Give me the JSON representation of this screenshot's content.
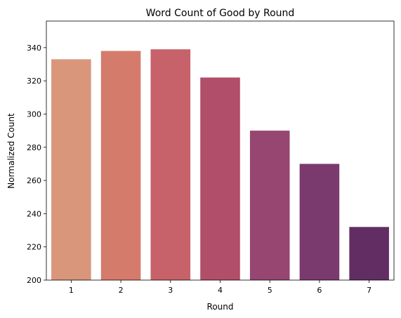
{
  "chart_data": {
    "type": "bar",
    "title": "Word Count of Good by Round",
    "xlabel": "Round",
    "ylabel": "Normalized Count",
    "categories": [
      "1",
      "2",
      "3",
      "4",
      "5",
      "6",
      "7"
    ],
    "values": [
      333,
      338,
      339,
      322,
      290,
      270,
      232
    ],
    "ylim": [
      200,
      356
    ],
    "yticks": [
      200,
      220,
      240,
      260,
      280,
      300,
      320,
      340
    ],
    "grid": false,
    "legend": "none",
    "colors": [
      "#d9967b",
      "#d47b6b",
      "#c8626a",
      "#b14e6a",
      "#974571",
      "#7b3a6d",
      "#622d63"
    ]
  }
}
